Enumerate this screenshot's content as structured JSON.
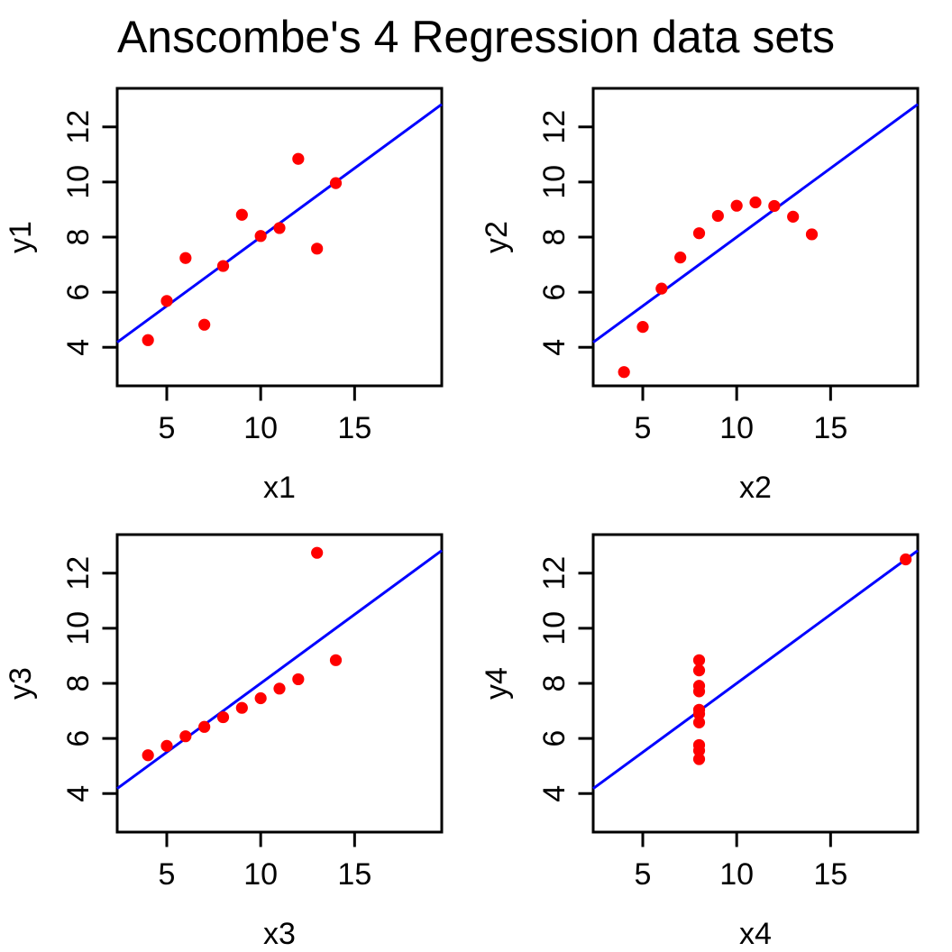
{
  "title": "Anscombe's 4 Regression data sets",
  "colors": {
    "point": "#FF0000",
    "regression_line": "#0000FF",
    "axis": "#000000",
    "background": "#FFFFFF"
  },
  "chart_data": [
    {
      "type": "scatter",
      "panel": "top-left",
      "xlabel": "x1",
      "ylabel": "y1",
      "x": [
        10,
        8,
        13,
        9,
        11,
        14,
        6,
        4,
        12,
        7,
        5
      ],
      "y": [
        8.04,
        6.95,
        7.58,
        8.81,
        8.33,
        9.96,
        7.24,
        4.26,
        10.84,
        4.82,
        5.68
      ],
      "regression": {
        "intercept": 3.0,
        "slope": 0.5
      },
      "xlim": [
        2.36,
        19.64
      ],
      "ylim": [
        2.6,
        13.4
      ],
      "xticks": [
        5,
        10,
        15
      ],
      "yticks": [
        4,
        6,
        8,
        10,
        12
      ],
      "grid": false,
      "legend": false,
      "point_color": "#FF0000",
      "line_color": "#0000FF"
    },
    {
      "type": "scatter",
      "panel": "top-right",
      "xlabel": "x2",
      "ylabel": "y2",
      "x": [
        10,
        8,
        13,
        9,
        11,
        14,
        6,
        4,
        12,
        7,
        5
      ],
      "y": [
        9.14,
        8.14,
        8.74,
        8.77,
        9.26,
        8.1,
        6.13,
        3.1,
        9.13,
        7.26,
        4.74
      ],
      "regression": {
        "intercept": 3.0,
        "slope": 0.5
      },
      "xlim": [
        2.36,
        19.64
      ],
      "ylim": [
        2.6,
        13.4
      ],
      "xticks": [
        5,
        10,
        15
      ],
      "yticks": [
        4,
        6,
        8,
        10,
        12
      ],
      "grid": false,
      "legend": false,
      "point_color": "#FF0000",
      "line_color": "#0000FF"
    },
    {
      "type": "scatter",
      "panel": "bottom-left",
      "xlabel": "x3",
      "ylabel": "y3",
      "x": [
        10,
        8,
        13,
        9,
        11,
        14,
        6,
        4,
        12,
        7,
        5
      ],
      "y": [
        7.46,
        6.77,
        12.74,
        7.11,
        7.81,
        8.84,
        6.08,
        5.39,
        8.15,
        6.42,
        5.73
      ],
      "regression": {
        "intercept": 3.0,
        "slope": 0.5
      },
      "xlim": [
        2.36,
        19.64
      ],
      "ylim": [
        2.6,
        13.4
      ],
      "xticks": [
        5,
        10,
        15
      ],
      "yticks": [
        4,
        6,
        8,
        10,
        12
      ],
      "grid": false,
      "legend": false,
      "point_color": "#FF0000",
      "line_color": "#0000FF"
    },
    {
      "type": "scatter",
      "panel": "bottom-right",
      "xlabel": "x4",
      "ylabel": "y4",
      "x": [
        8,
        8,
        8,
        8,
        8,
        8,
        8,
        19,
        8,
        8,
        8
      ],
      "y": [
        6.58,
        5.76,
        7.71,
        8.84,
        8.47,
        7.04,
        5.25,
        12.5,
        5.56,
        7.91,
        6.89
      ],
      "regression": {
        "intercept": 3.0,
        "slope": 0.5
      },
      "xlim": [
        2.36,
        19.64
      ],
      "ylim": [
        2.6,
        13.4
      ],
      "xticks": [
        5,
        10,
        15
      ],
      "yticks": [
        4,
        6,
        8,
        10,
        12
      ],
      "grid": false,
      "legend": false,
      "point_color": "#FF0000",
      "line_color": "#0000FF"
    }
  ]
}
